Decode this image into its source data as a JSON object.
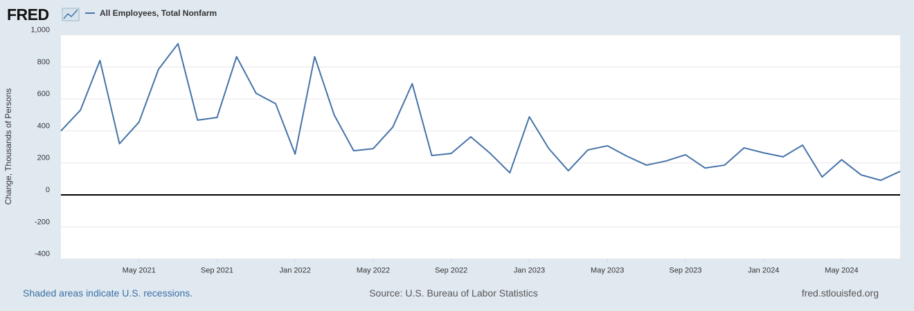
{
  "chart_data": {
    "type": "line",
    "logo": "FRED",
    "ylabel": "Change, Thousands of Persons",
    "note": "Shaded areas indicate U.S. recessions.",
    "source": "Source: U.S. Bureau of Labor Statistics",
    "credit": "fred.stlouisfed.org",
    "x": [
      "2021-01",
      "2021-02",
      "2021-03",
      "2021-04",
      "2021-05",
      "2021-06",
      "2021-07",
      "2021-08",
      "2021-09",
      "2021-10",
      "2021-11",
      "2021-12",
      "2022-01",
      "2022-02",
      "2022-03",
      "2022-04",
      "2022-05",
      "2022-06",
      "2022-07",
      "2022-08",
      "2022-09",
      "2022-10",
      "2022-11",
      "2022-12",
      "2023-01",
      "2023-02",
      "2023-03",
      "2023-04",
      "2023-05",
      "2023-06",
      "2023-07",
      "2023-08",
      "2023-09",
      "2023-10",
      "2023-11",
      "2023-12",
      "2024-01",
      "2024-02",
      "2024-03",
      "2024-04",
      "2024-05",
      "2024-06",
      "2024-07",
      "2024-08"
    ],
    "series": [
      {
        "name": "All Employees, Total Nonfarm",
        "color": "#4572a7",
        "values": [
          400,
          530,
          840,
          320,
          455,
          785,
          945,
          467,
          484,
          864,
          635,
          570,
          255,
          864,
          500,
          276,
          289,
          423,
          695,
          246,
          259,
          363,
          259,
          138,
          488,
          289,
          151,
          281,
          307,
          242,
          186,
          212,
          251,
          168,
          186,
          294,
          263,
          238,
          311,
          112,
          220,
          125,
          91,
          147
        ]
      }
    ],
    "xlim": [
      "2021-01",
      "2024-08"
    ],
    "xticks": [
      {
        "value": "2021-05",
        "label": "May 2021"
      },
      {
        "value": "2021-09",
        "label": "Sep 2021"
      },
      {
        "value": "2022-01",
        "label": "Jan 2022"
      },
      {
        "value": "2022-05",
        "label": "May 2022"
      },
      {
        "value": "2022-09",
        "label": "Sep 2022"
      },
      {
        "value": "2023-01",
        "label": "Jan 2023"
      },
      {
        "value": "2023-05",
        "label": "May 2023"
      },
      {
        "value": "2023-09",
        "label": "Sep 2023"
      },
      {
        "value": "2024-01",
        "label": "Jan 2024"
      },
      {
        "value": "2024-05",
        "label": "May 2024"
      }
    ],
    "ylim": [
      -400,
      1000
    ],
    "yticks": [
      -400,
      -200,
      0,
      200,
      400,
      600,
      800,
      {
        "value": 1000,
        "label": "1,000"
      }
    ],
    "grid": true
  }
}
